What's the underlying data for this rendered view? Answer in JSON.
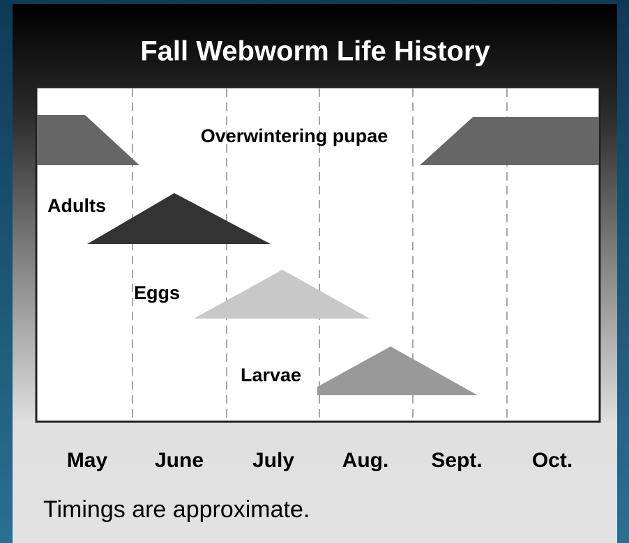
{
  "title": "Fall Webworm Life History",
  "stages": [
    "Overwintering pupae",
    "Adults",
    "Eggs",
    "Larvae"
  ],
  "months": [
    "May",
    "June",
    "July",
    "Aug.",
    "Sept.",
    "Oct."
  ],
  "note": "Timings are approximate."
}
